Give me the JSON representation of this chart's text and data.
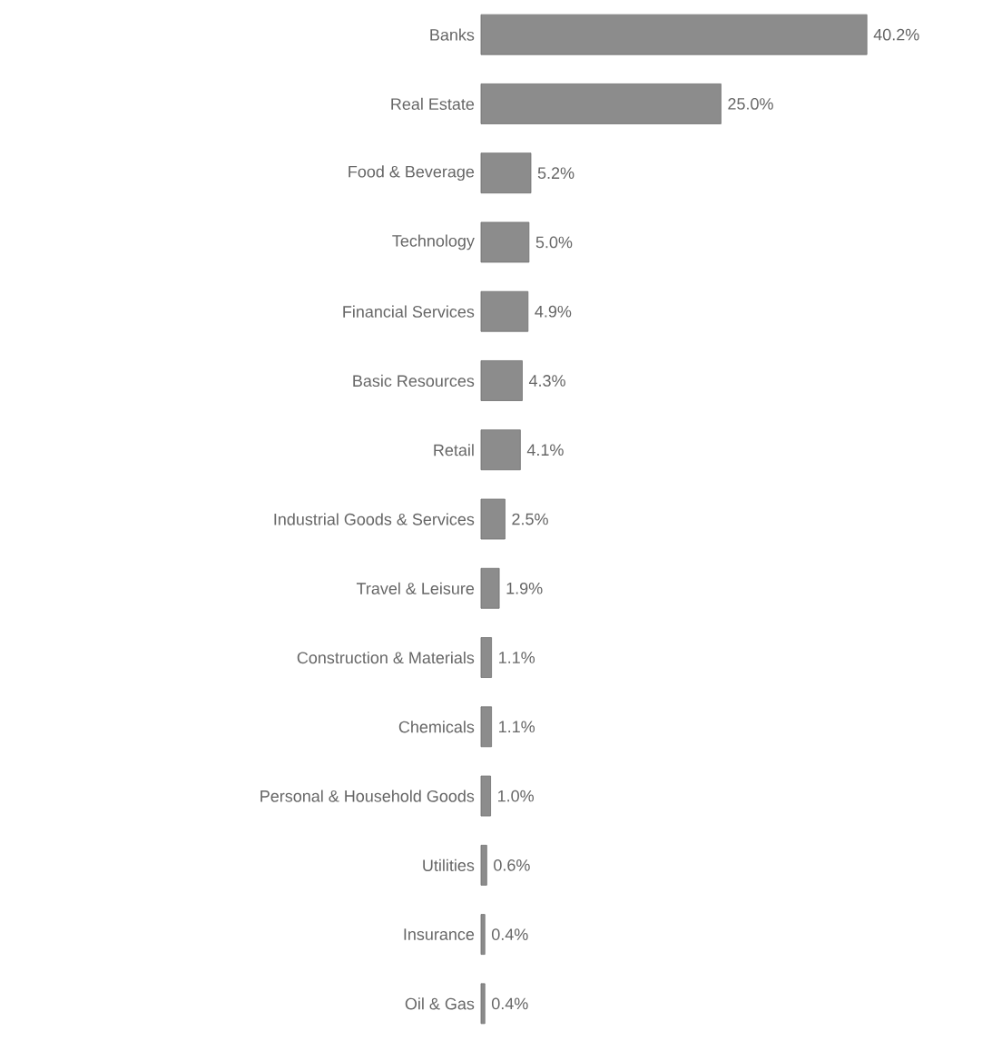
{
  "chart_data": {
    "type": "bar",
    "orientation": "horizontal",
    "color": "#8c8c8c",
    "categories": [
      "Banks",
      "Real Estate",
      "Food & Beverage",
      "Technology",
      "Financial Services",
      "Basic Resources",
      "Retail",
      "Industrial Goods & Services",
      "Travel & Leisure",
      "Construction & Materials",
      "Chemicals",
      "Personal & Household Goods",
      "Utilities",
      "Insurance",
      "Oil & Gas"
    ],
    "values": [
      40.2,
      25.0,
      5.2,
      5.0,
      4.9,
      4.3,
      4.1,
      2.5,
      1.9,
      1.1,
      1.1,
      1.0,
      0.6,
      0.4,
      0.4
    ],
    "value_labels": [
      "40.2%",
      "25.0%",
      "5.2%",
      "5.0%",
      "4.9%",
      "4.3%",
      "4.1%",
      "2.5%",
      "1.9%",
      "1.1%",
      "1.1%",
      "1.0%",
      "0.6%",
      "0.4%",
      "0.4%"
    ]
  }
}
